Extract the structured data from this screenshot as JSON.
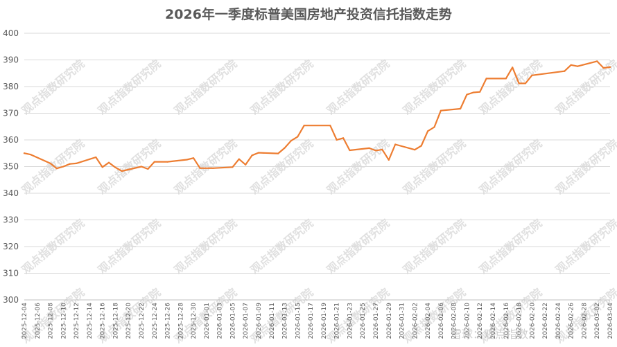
{
  "watermark_text": "观点指数研究院",
  "corner_watermark": "雪球：观点指数",
  "line_color": "#ED7D31",
  "chart_data": {
    "type": "line",
    "title": "2026年一季度标普美国房地产投资信托指数走势",
    "xlabel": "",
    "ylabel": "",
    "ylim": [
      300,
      400
    ],
    "yticks": [
      300,
      310,
      320,
      330,
      340,
      350,
      360,
      370,
      380,
      390,
      400
    ],
    "grid": true,
    "x_tick_labels": [
      "2025-12-04",
      "2025-12-06",
      "2025-12-08",
      "2025-12-10",
      "2025-12-12",
      "2025-12-14",
      "2025-12-16",
      "2025-12-18",
      "2025-12-20",
      "2025-12-22",
      "2025-12-24",
      "2025-12-26",
      "2025-12-28",
      "2025-12-30",
      "2026-01-01",
      "2026-01-03",
      "2026-01-05",
      "2026-01-07",
      "2026-01-09",
      "2026-01-11",
      "2026-01-13",
      "2026-01-15",
      "2026-01-17",
      "2026-01-19",
      "2026-01-21",
      "2026-01-23",
      "2026-01-25",
      "2026-01-27",
      "2026-01-29",
      "2026-01-31",
      "2026-02-02",
      "2026-02-04",
      "2026-02-06",
      "2026-02-08",
      "2026-02-10",
      "2026-02-12",
      "2026-02-14",
      "2026-02-16",
      "2026-02-18",
      "2026-02-20",
      "2026-02-22",
      "2026-02-24",
      "2026-02-26",
      "2026-02-28",
      "2026-03-02",
      "2026-03-04"
    ],
    "series": [
      {
        "name": "",
        "x": [
          "2025-12-04",
          "2025-12-05",
          "2025-12-08",
          "2025-12-09",
          "2025-12-10",
          "2025-12-11",
          "2025-12-12",
          "2025-12-15",
          "2025-12-16",
          "2025-12-17",
          "2025-12-18",
          "2025-12-19",
          "2025-12-22",
          "2025-12-23",
          "2025-12-24",
          "2025-12-26",
          "2025-12-29",
          "2025-12-30",
          "2025-12-31",
          "2026-01-02",
          "2026-01-05",
          "2026-01-06",
          "2026-01-07",
          "2026-01-08",
          "2026-01-09",
          "2026-01-12",
          "2026-01-13",
          "2026-01-14",
          "2026-01-15",
          "2026-01-16",
          "2026-01-20",
          "2026-01-21",
          "2026-01-22",
          "2026-01-23",
          "2026-01-26",
          "2026-01-27",
          "2026-01-28",
          "2026-01-29",
          "2026-01-30",
          "2026-02-02",
          "2026-02-03",
          "2026-02-04",
          "2026-02-05",
          "2026-02-06",
          "2026-02-09",
          "2026-02-10",
          "2026-02-11",
          "2026-02-12",
          "2026-02-13",
          "2026-02-16",
          "2026-02-17",
          "2026-02-18",
          "2026-02-19",
          "2026-02-20",
          "2026-02-25",
          "2026-02-26",
          "2026-02-27",
          "2026-03-02",
          "2026-03-03",
          "2026-03-04"
        ],
        "values": [
          355.0,
          354.5,
          351.2,
          349.3,
          350.0,
          351.0,
          351.2,
          353.5,
          349.8,
          351.5,
          349.7,
          348.3,
          350.0,
          349.1,
          351.8,
          351.8,
          352.6,
          353.2,
          349.4,
          349.4,
          349.8,
          352.8,
          350.7,
          354.2,
          355.2,
          354.9,
          357.0,
          359.7,
          361.2,
          365.4,
          365.4,
          360.0,
          360.7,
          356.1,
          356.9,
          356.0,
          356.4,
          352.5,
          358.3,
          356.3,
          357.8,
          363.3,
          364.8,
          371.0,
          371.7,
          377.0,
          377.8,
          378.0,
          383.0,
          383.0,
          387.2,
          381.2,
          381.2,
          384.2,
          385.8,
          388.1,
          387.6,
          389.5,
          387.0,
          387.3
        ]
      }
    ]
  }
}
